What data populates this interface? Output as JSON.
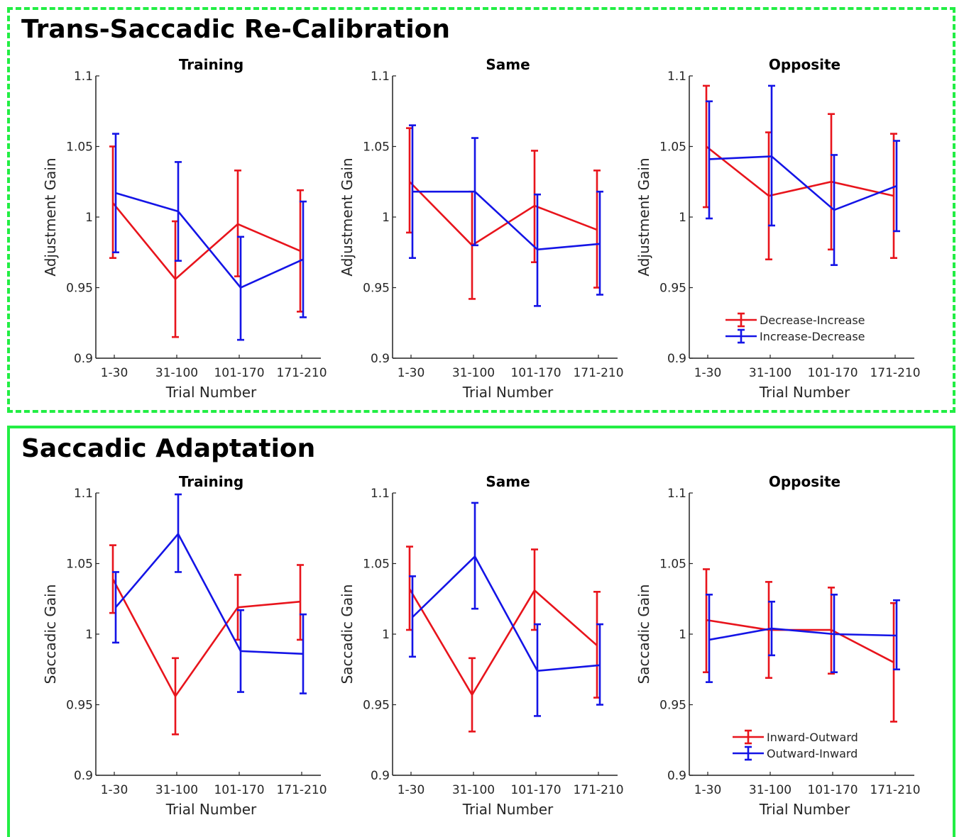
{
  "sections": [
    {
      "title": "Trans-Saccadic Re-Calibration"
    },
    {
      "title": "Saccadic Adaptation"
    }
  ],
  "colors": {
    "red": "#e8141c",
    "blue": "#1414e6",
    "frame": "#22ee44"
  },
  "chart_data": [
    {
      "type": "line",
      "title": "Training",
      "xlabel": "Trial Number",
      "ylabel": "Adjustment Gain",
      "categories": [
        "1-30",
        "31-100",
        "101-170",
        "171-210"
      ],
      "ylim": [
        0.9,
        1.1
      ],
      "yticks": [
        "0.9",
        "0.95",
        "1",
        "1.05",
        "1.1"
      ],
      "series": [
        {
          "color": "#e8141c",
          "values": [
            1.01,
            0.956,
            0.995,
            0.976
          ],
          "err_low": [
            0.971,
            0.915,
            0.958,
            0.933
          ],
          "err_high": [
            1.05,
            0.997,
            1.033,
            1.019
          ]
        },
        {
          "color": "#1414e6",
          "values": [
            1.017,
            1.004,
            0.95,
            0.97
          ],
          "err_low": [
            0.975,
            0.969,
            0.913,
            0.929
          ],
          "err_high": [
            1.059,
            1.039,
            0.986,
            1.011
          ]
        }
      ]
    },
    {
      "type": "line",
      "title": "Same",
      "xlabel": "Trial Number",
      "ylabel": "Adjustment Gain",
      "categories": [
        "1-30",
        "31-100",
        "101-170",
        "171-210"
      ],
      "ylim": [
        0.9,
        1.1
      ],
      "yticks": [
        "0.9",
        "0.95",
        "1",
        "1.05",
        "1.1"
      ],
      "series": [
        {
          "color": "#e8141c",
          "values": [
            1.025,
            0.98,
            1.008,
            0.991
          ],
          "err_low": [
            0.989,
            0.942,
            0.968,
            0.95
          ],
          "err_high": [
            1.063,
            1.018,
            1.047,
            1.033
          ]
        },
        {
          "color": "#1414e6",
          "values": [
            1.018,
            1.018,
            0.977,
            0.981
          ],
          "err_low": [
            0.971,
            0.98,
            0.937,
            0.945
          ],
          "err_high": [
            1.065,
            1.056,
            1.016,
            1.018
          ]
        }
      ]
    },
    {
      "type": "line",
      "title": "Opposite",
      "xlabel": "Trial Number",
      "ylabel": "Adjustment Gain",
      "categories": [
        "1-30",
        "31-100",
        "101-170",
        "171-210"
      ],
      "ylim": [
        0.9,
        1.1
      ],
      "yticks": [
        "0.9",
        "0.95",
        "1",
        "1.05",
        "1.1"
      ],
      "legend": [
        "Decrease-Increase",
        "Increase-Decrease"
      ],
      "series": [
        {
          "color": "#e8141c",
          "values": [
            1.05,
            1.015,
            1.025,
            1.015
          ],
          "err_low": [
            1.007,
            0.97,
            0.977,
            0.971
          ],
          "err_high": [
            1.093,
            1.06,
            1.073,
            1.059
          ]
        },
        {
          "color": "#1414e6",
          "values": [
            1.041,
            1.043,
            1.005,
            1.022
          ],
          "err_low": [
            0.999,
            0.994,
            0.966,
            0.99
          ],
          "err_high": [
            1.082,
            1.093,
            1.044,
            1.054
          ]
        }
      ]
    },
    {
      "type": "line",
      "title": "Training",
      "xlabel": "Trial Number",
      "ylabel": "Saccadic Gain",
      "categories": [
        "1-30",
        "31-100",
        "101-170",
        "171-210"
      ],
      "ylim": [
        0.9,
        1.1
      ],
      "yticks": [
        "0.9",
        "0.95",
        "1",
        "1.05",
        "1.1"
      ],
      "series": [
        {
          "color": "#e8141c",
          "values": [
            1.039,
            0.956,
            1.019,
            1.023
          ],
          "err_low": [
            1.015,
            0.929,
            0.996,
            0.996
          ],
          "err_high": [
            1.063,
            0.983,
            1.042,
            1.049
          ]
        },
        {
          "color": "#1414e6",
          "values": [
            1.019,
            1.071,
            0.988,
            0.986
          ],
          "err_low": [
            0.994,
            1.044,
            0.959,
            0.958
          ],
          "err_high": [
            1.044,
            1.099,
            1.017,
            1.014
          ]
        }
      ]
    },
    {
      "type": "line",
      "title": "Same",
      "xlabel": "Trial Number",
      "ylabel": "Saccadic Gain",
      "categories": [
        "1-30",
        "31-100",
        "101-170",
        "171-210"
      ],
      "ylim": [
        0.9,
        1.1
      ],
      "yticks": [
        "0.9",
        "0.95",
        "1",
        "1.05",
        "1.1"
      ],
      "series": [
        {
          "color": "#e8141c",
          "values": [
            1.032,
            0.957,
            1.031,
            0.992
          ],
          "err_low": [
            1.003,
            0.931,
            1.003,
            0.955
          ],
          "err_high": [
            1.062,
            0.983,
            1.06,
            1.03
          ]
        },
        {
          "color": "#1414e6",
          "values": [
            1.012,
            1.055,
            0.974,
            0.978
          ],
          "err_low": [
            0.984,
            1.018,
            0.942,
            0.95
          ],
          "err_high": [
            1.041,
            1.093,
            1.007,
            1.007
          ]
        }
      ]
    },
    {
      "type": "line",
      "title": "Opposite",
      "xlabel": "Trial Number",
      "ylabel": "Saccadic Gain",
      "categories": [
        "1-30",
        "31-100",
        "101-170",
        "171-210"
      ],
      "ylim": [
        0.9,
        1.1
      ],
      "yticks": [
        "0.9",
        "0.95",
        "1",
        "1.05",
        "1.1"
      ],
      "legend": [
        "Inward-Outward",
        "Outward-Inward"
      ],
      "series": [
        {
          "color": "#e8141c",
          "values": [
            1.01,
            1.003,
            1.003,
            0.98
          ],
          "err_low": [
            0.973,
            0.969,
            0.972,
            0.938
          ],
          "err_high": [
            1.046,
            1.037,
            1.033,
            1.022
          ]
        },
        {
          "color": "#1414e6",
          "values": [
            0.996,
            1.004,
            1.0,
            0.999
          ],
          "err_low": [
            0.966,
            0.985,
            0.973,
            0.975
          ],
          "err_high": [
            1.028,
            1.023,
            1.028,
            1.024
          ]
        }
      ]
    }
  ]
}
